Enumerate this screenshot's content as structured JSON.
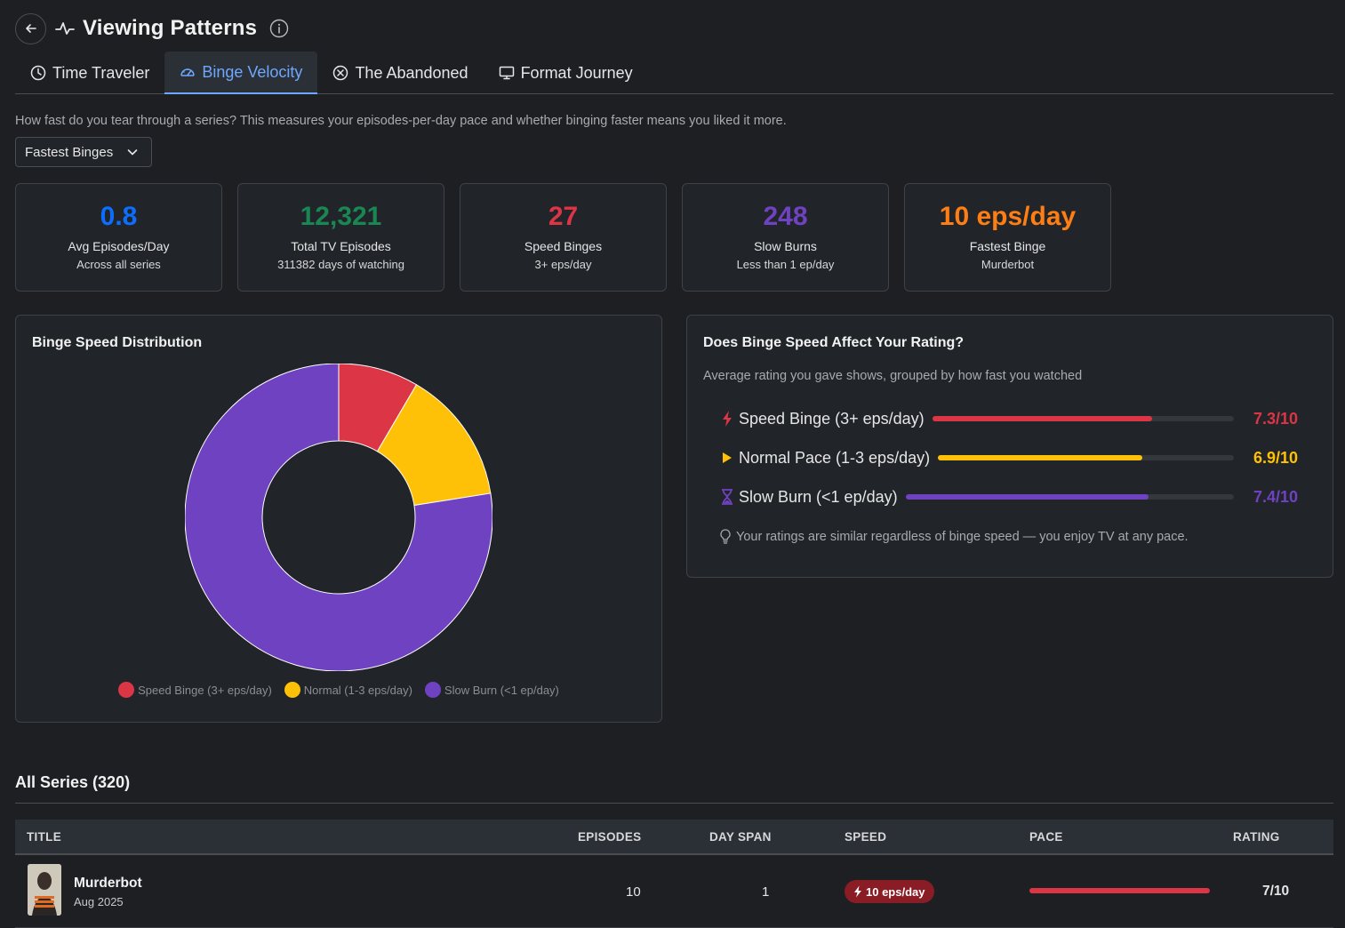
{
  "header": {
    "title": "Viewing Patterns"
  },
  "tabs": [
    {
      "label": "Time Traveler",
      "icon": "clock-icon",
      "active": false
    },
    {
      "label": "Binge Velocity",
      "icon": "speedometer-icon",
      "active": true
    },
    {
      "label": "The Abandoned",
      "icon": "x-circle-icon",
      "active": false
    },
    {
      "label": "Format Journey",
      "icon": "monitor-icon",
      "active": false
    }
  ],
  "description": "How fast do you tear through a series? This measures your episodes-per-day pace and whether binging faster means you liked it more.",
  "filter": {
    "selected": "Fastest Binges"
  },
  "stats": [
    {
      "value": "0.8",
      "label": "Avg Episodes/Day",
      "sub": "Across all series",
      "color": "#0d6efd"
    },
    {
      "value": "12,321",
      "label": "Total TV Episodes",
      "sub": "311382 days of watching",
      "color": "#198754"
    },
    {
      "value": "27",
      "label": "Speed Binges",
      "sub": "3+ eps/day",
      "color": "#dc3545"
    },
    {
      "value": "248",
      "label": "Slow Burns",
      "sub": "Less than 1 ep/day",
      "color": "#6f42c1"
    },
    {
      "value": "10 eps/day",
      "label": "Fastest Binge",
      "sub": "Murderbot",
      "color": "#fd7e14"
    }
  ],
  "distribution": {
    "title": "Binge Speed Distribution",
    "legend": [
      {
        "label": "Speed Binge (3+ eps/day)",
        "color": "#dc3545"
      },
      {
        "label": "Normal (1-3 eps/day)",
        "color": "#ffc107"
      },
      {
        "label": "Slow Burn (<1 ep/day)",
        "color": "#6f42c1"
      }
    ]
  },
  "chart_data": {
    "type": "pie",
    "categories": [
      "Speed Binge (3+ eps/day)",
      "Normal (1-3 eps/day)",
      "Slow Burn (<1 ep/day)"
    ],
    "values": [
      27,
      45,
      248
    ],
    "colors": [
      "#dc3545",
      "#ffc107",
      "#6f42c1"
    ],
    "donut": true,
    "legend": "bottom"
  },
  "rating_panel": {
    "title": "Does Binge Speed Affect Your Rating?",
    "subtitle": "Average rating you gave shows, grouped by how fast you watched",
    "rows": [
      {
        "label": "Speed Binge (3+ eps/day)",
        "value": "7.3/10",
        "fraction": 0.73,
        "color": "#dc3545",
        "icon": "lightning-icon"
      },
      {
        "label": "Normal Pace (1-3 eps/day)",
        "value": "6.9/10",
        "fraction": 0.69,
        "color": "#ffc107",
        "icon": "play-icon"
      },
      {
        "label": "Slow Burn (<1 ep/day)",
        "value": "7.4/10",
        "fraction": 0.74,
        "color": "#6f42c1",
        "icon": "hourglass-icon"
      }
    ],
    "note": "Your ratings are similar regardless of binge speed — you enjoy TV at any pace."
  },
  "series": {
    "title": "All Series (320)",
    "columns": {
      "title": "TITLE",
      "episodes": "EPISODES",
      "day_span": "DAY SPAN",
      "speed": "SPEED",
      "pace": "PACE",
      "rating": "RATING"
    },
    "rows": [
      {
        "title": "Murderbot",
        "date": "Aug 2025",
        "episodes": "10",
        "day_span": "1",
        "speed": "10 eps/day",
        "pace": 1.0,
        "rating": "7/10"
      }
    ]
  }
}
